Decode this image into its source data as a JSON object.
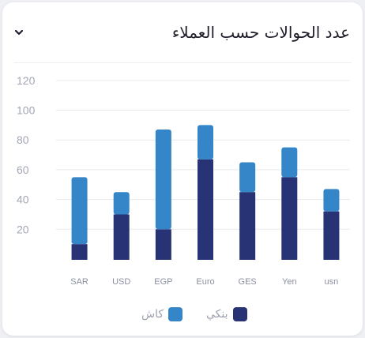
{
  "header": {
    "title": "عدد الحوالات حسب العملاء"
  },
  "colors": {
    "bank": "#283375",
    "cash": "#3585c9",
    "grid": "#e7e9ee",
    "tick_text": "#a3a7b5"
  },
  "chart_data": {
    "type": "bar",
    "stacked": true,
    "categories": [
      "SAR",
      "USD",
      "EGP",
      "Euro",
      "GES",
      "Yen",
      "usn"
    ],
    "series": [
      {
        "name": "بنكي",
        "color": "#283375",
        "values": [
          10,
          30,
          20,
          67,
          45,
          55,
          32
        ]
      },
      {
        "name": "كاش",
        "color": "#3585c9",
        "values": [
          45,
          15,
          67,
          23,
          20,
          20,
          15
        ]
      }
    ],
    "y_ticks": [
      20,
      40,
      60,
      80,
      100,
      120
    ],
    "ylim": [
      0,
      130
    ],
    "grid": true,
    "legend": {
      "position": "bottom"
    }
  }
}
